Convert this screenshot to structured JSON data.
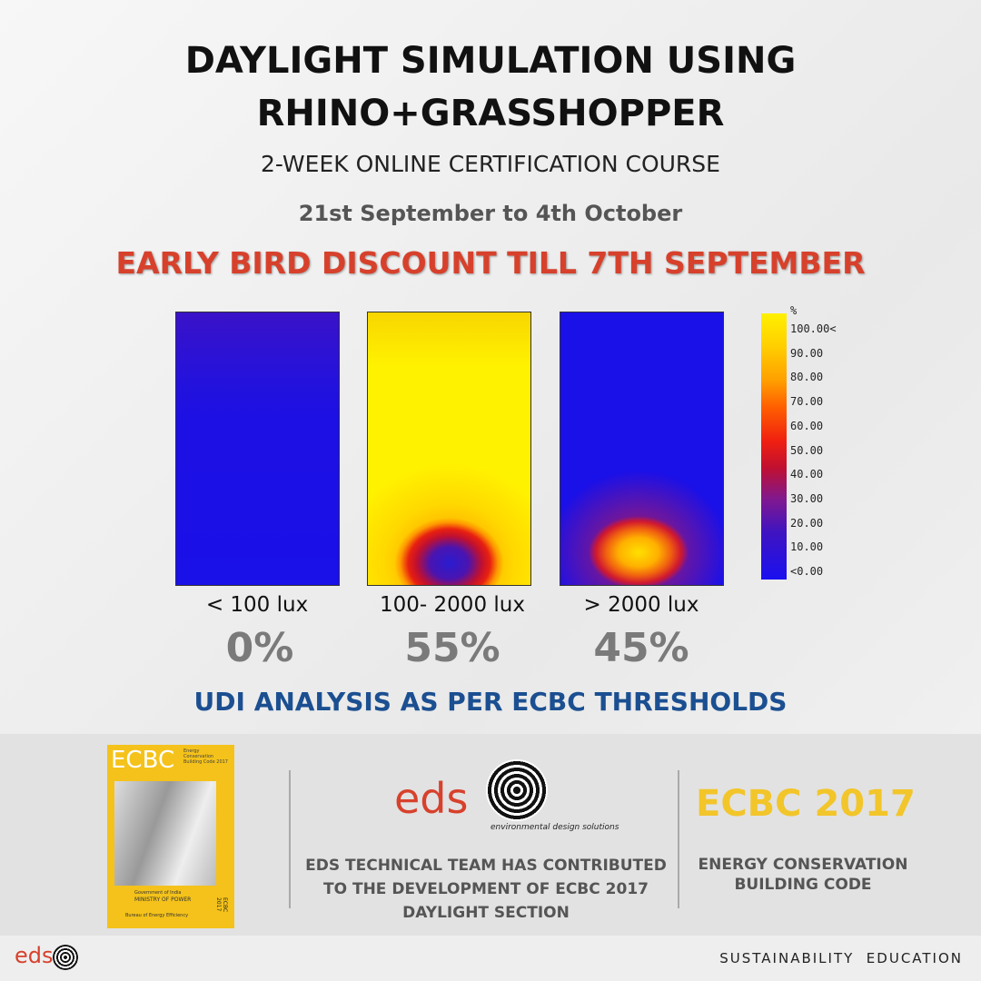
{
  "header": {
    "title_line1": "DAYLIGHT SIMULATION USING",
    "title_line2": "RHINO+GRASSHOPPER",
    "subtitle": "2-WEEK ONLINE CERTIFICATION COURSE",
    "dates": "21st September to 4th October",
    "discount": "EARLY BIRD DISCOUNT TILL 7TH SEPTEMBER"
  },
  "panels": [
    {
      "label": "< 100 lux",
      "value": "0%"
    },
    {
      "label": "100- 2000 lux",
      "value": "55%"
    },
    {
      "label": "> 2000 lux",
      "value": "45%"
    }
  ],
  "legend": {
    "unit": "%",
    "labels": [
      "100.00<",
      "90.00",
      "80.00",
      "70.00",
      "60.00",
      "50.00",
      "40.00",
      "30.00",
      "20.00",
      "10.00",
      "<0.00"
    ]
  },
  "analysis_title": "UDI ANALYSIS AS PER ECBC THRESHOLDS",
  "book": {
    "title": "ECBC",
    "subtitle": "Energy Conservation Building Code 2017",
    "ministry_line1": "Government of India",
    "ministry_line2": "MINISTRY OF POWER",
    "bureau": "Bureau of Energy Efficiency",
    "spine": "ECBC 2017"
  },
  "eds": {
    "logo": "eds",
    "tagline": "environmental design solutions",
    "text_lines": [
      "EDS TECHNICAL TEAM HAS CONTRIBUTED",
      "TO THE DEVELOPMENT OF ECBC 2017",
      "DAYLIGHT SECTION"
    ]
  },
  "ecbc": {
    "title": "ECBC 2017",
    "text_lines": [
      "ENERGY CONSERVATION",
      "BUILDING CODE"
    ]
  },
  "bottom_bar": {
    "logo": "eds",
    "tagline": "SUSTAINABILITY  EDUCATION"
  }
}
